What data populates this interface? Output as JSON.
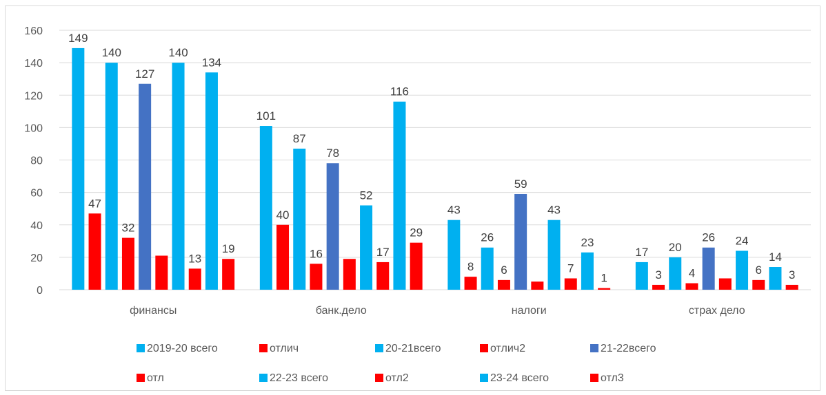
{
  "chart_data": {
    "type": "bar",
    "categories": [
      "финансы",
      "банк.дело",
      "налоги",
      "страх дело"
    ],
    "ylim": [
      0,
      160
    ],
    "yticks": [
      0,
      20,
      40,
      60,
      80,
      100,
      120,
      140,
      160
    ],
    "grid": true,
    "legend_position": "bottom",
    "series": [
      {
        "name": "2019-20 всего",
        "color": "#00b0f0",
        "values": [
          149,
          101,
          43,
          17
        ]
      },
      {
        "name": "отлич",
        "color": "#ff0000",
        "values": [
          47,
          40,
          8,
          3
        ]
      },
      {
        "name": "20-21всего",
        "color": "#00b0f0",
        "values": [
          140,
          87,
          26,
          20
        ]
      },
      {
        "name": "отлич2",
        "color": "#ff0000",
        "values": [
          32,
          16,
          6,
          4
        ]
      },
      {
        "name": "21-22всего",
        "color": "#4472c4",
        "values": [
          127,
          78,
          59,
          26
        ]
      },
      {
        "name": "отл",
        "color": "#ff0000",
        "values": [
          21,
          19,
          5,
          7
        ]
      },
      {
        "name": "22-23 всего",
        "color": "#00b0f0",
        "values": [
          140,
          52,
          43,
          24
        ]
      },
      {
        "name": "отл2",
        "color": "#ff0000",
        "values": [
          13,
          17,
          7,
          6
        ]
      },
      {
        "name": "23-24 всего",
        "color": "#00b0f0",
        "values": [
          134,
          116,
          23,
          14
        ]
      },
      {
        "name": "отл3",
        "color": "#ff0000",
        "values": [
          19,
          29,
          1,
          3
        ]
      }
    ],
    "data_labels": [
      [
        149,
        47,
        140,
        32,
        127,
        null,
        140,
        13,
        134,
        19
      ],
      [
        101,
        40,
        87,
        16,
        78,
        null,
        52,
        17,
        116,
        29
      ],
      [
        43,
        8,
        26,
        6,
        59,
        null,
        43,
        7,
        23,
        1
      ],
      [
        17,
        3,
        20,
        4,
        26,
        null,
        24,
        6,
        14,
        3
      ]
    ]
  }
}
